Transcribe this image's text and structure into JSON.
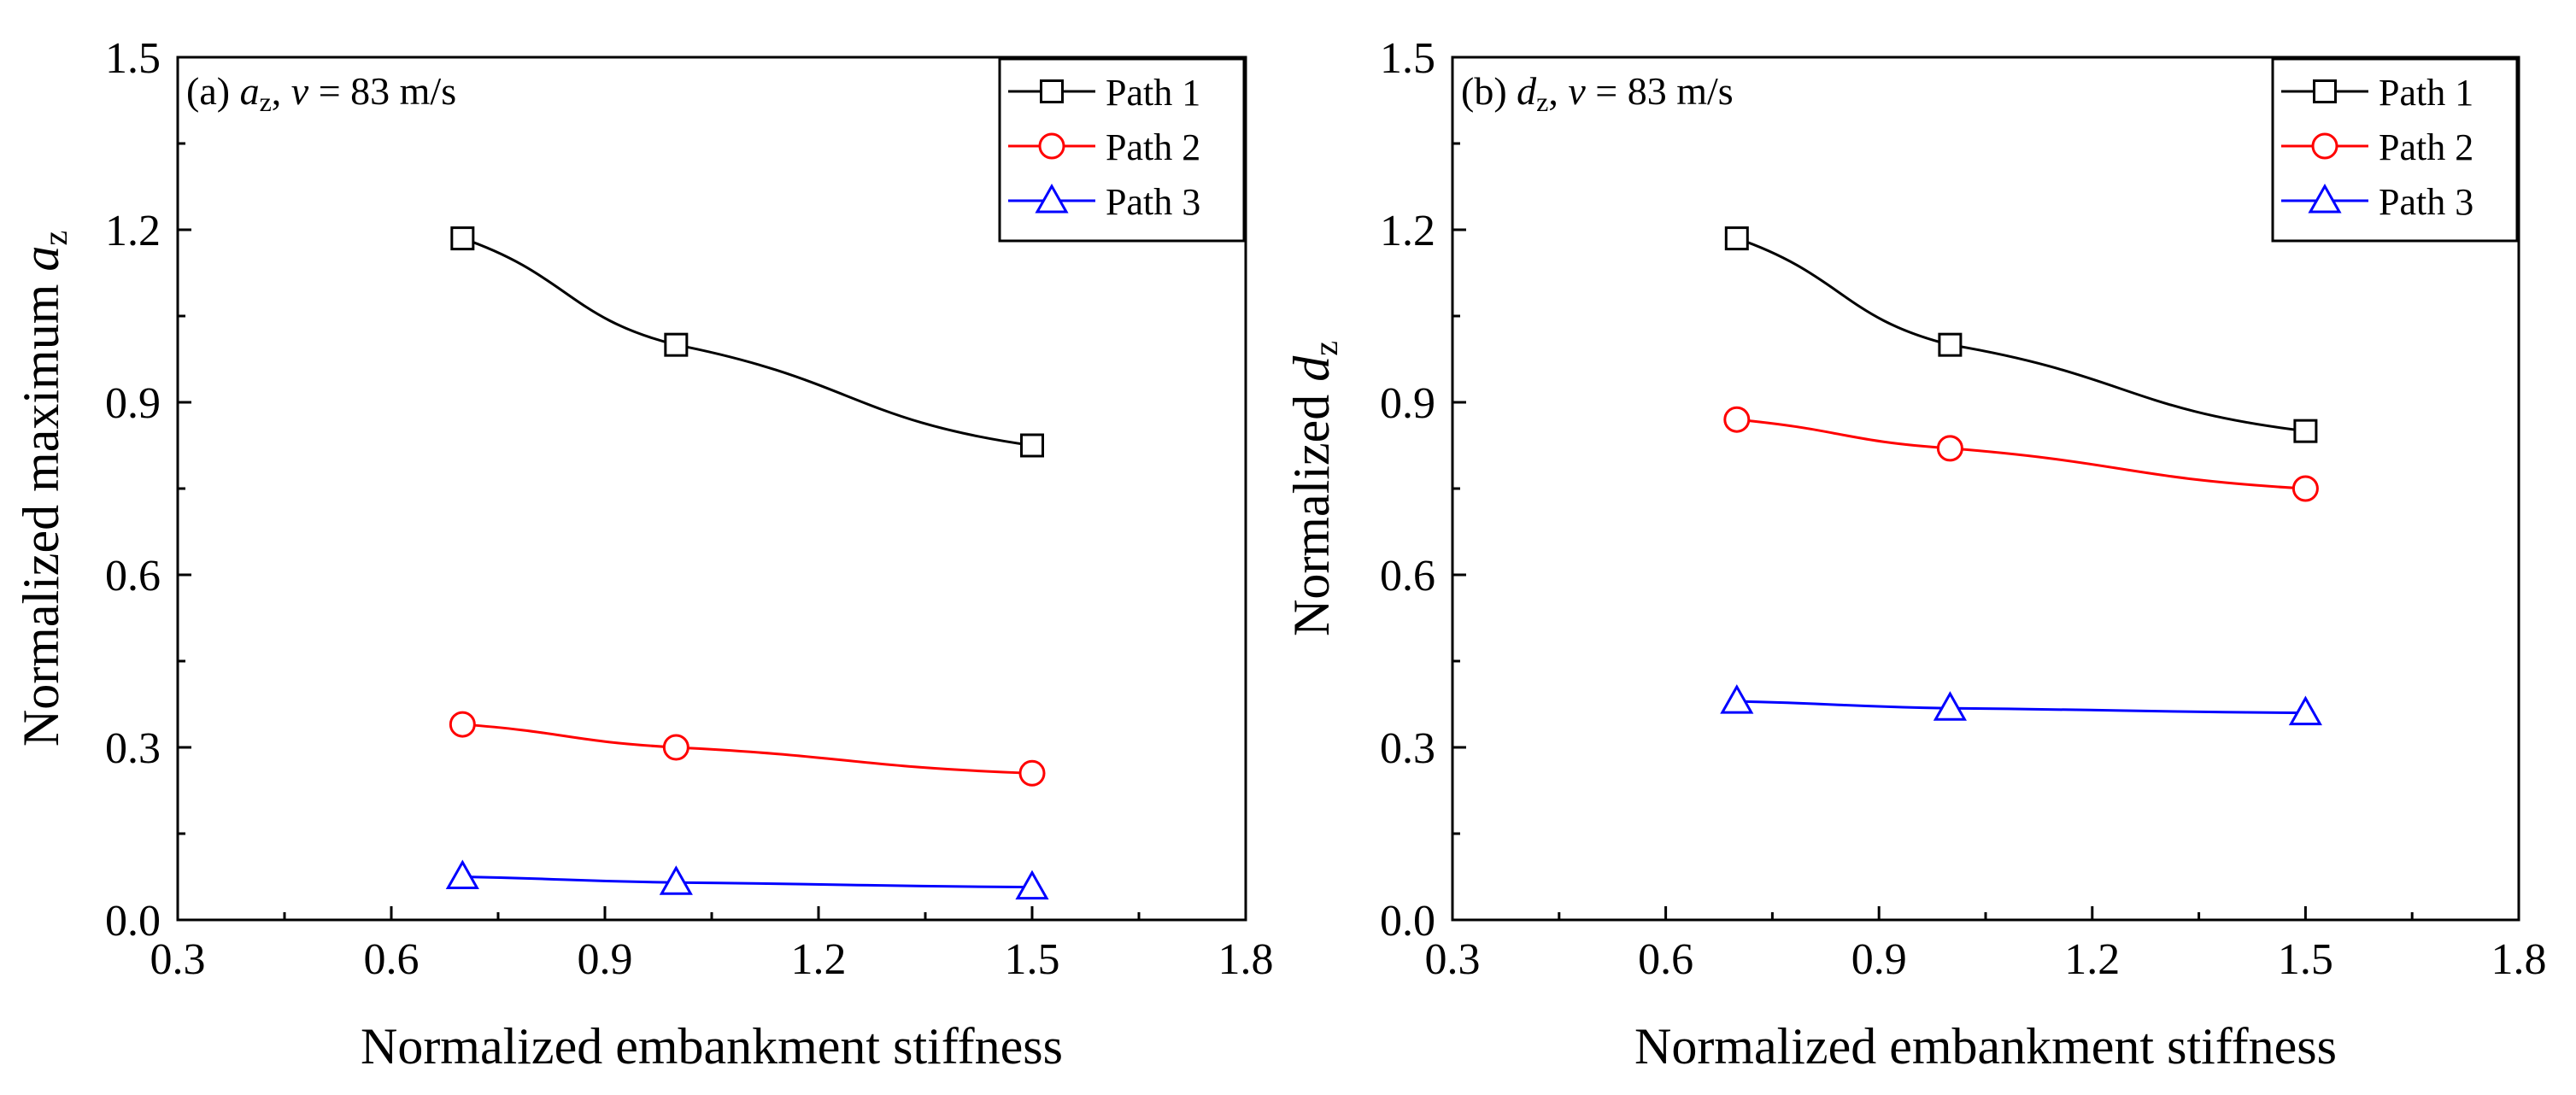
{
  "chart_data": [
    {
      "type": "line",
      "panel_label": {
        "prefix": "(a) ",
        "var": "a",
        "sub": "z",
        "mid": ", ",
        "speed_var": "v",
        "speed_text": " = 83 m/s"
      },
      "xlabel": "Normalized embankment stiffness",
      "ylabel": {
        "text": "Normalized maximum ",
        "var": "a",
        "sub": "z"
      },
      "xlim": [
        0.3,
        1.8
      ],
      "ylim": [
        0.0,
        1.5
      ],
      "xticks": [
        "0.3",
        "0.6",
        "0.9",
        "1.2",
        "1.5",
        "1.8"
      ],
      "yticks": [
        "0.0",
        "0.3",
        "0.6",
        "0.9",
        "1.2",
        "1.5"
      ],
      "grid": false,
      "legend_position": "top-right",
      "x": [
        0.7,
        1.0,
        1.5
      ],
      "series": [
        {
          "name": "Path 1",
          "values": [
            1.185,
            1.0,
            0.825
          ],
          "color": "#000000",
          "marker": "square"
        },
        {
          "name": "Path 2",
          "values": [
            0.34,
            0.3,
            0.255
          ],
          "color": "#ff0000",
          "marker": "circle"
        },
        {
          "name": "Path 3",
          "values": [
            0.075,
            0.065,
            0.057
          ],
          "color": "#0000ff",
          "marker": "triangle"
        }
      ]
    },
    {
      "type": "line",
      "panel_label": {
        "prefix": "(b) ",
        "var": "d",
        "sub": "z",
        "mid": ", ",
        "speed_var": "v",
        "speed_text": " = 83 m/s"
      },
      "xlabel": "Normalized embankment stiffness",
      "ylabel": {
        "text": "Normalized ",
        "var": "d",
        "sub": "z"
      },
      "xlim": [
        0.3,
        1.8
      ],
      "ylim": [
        0.0,
        1.5
      ],
      "xticks": [
        "0.3",
        "0.6",
        "0.9",
        "1.2",
        "1.5",
        "1.8"
      ],
      "yticks": [
        "0.0",
        "0.3",
        "0.6",
        "0.9",
        "1.2",
        "1.5"
      ],
      "grid": false,
      "legend_position": "top-right",
      "x": [
        0.7,
        1.0,
        1.5
      ],
      "series": [
        {
          "name": "Path 1",
          "values": [
            1.185,
            1.0,
            0.85
          ],
          "color": "#000000",
          "marker": "square"
        },
        {
          "name": "Path 2",
          "values": [
            0.87,
            0.82,
            0.75
          ],
          "color": "#ff0000",
          "marker": "circle"
        },
        {
          "name": "Path 3",
          "values": [
            0.38,
            0.368,
            0.36
          ],
          "color": "#0000ff",
          "marker": "triangle"
        }
      ]
    }
  ]
}
